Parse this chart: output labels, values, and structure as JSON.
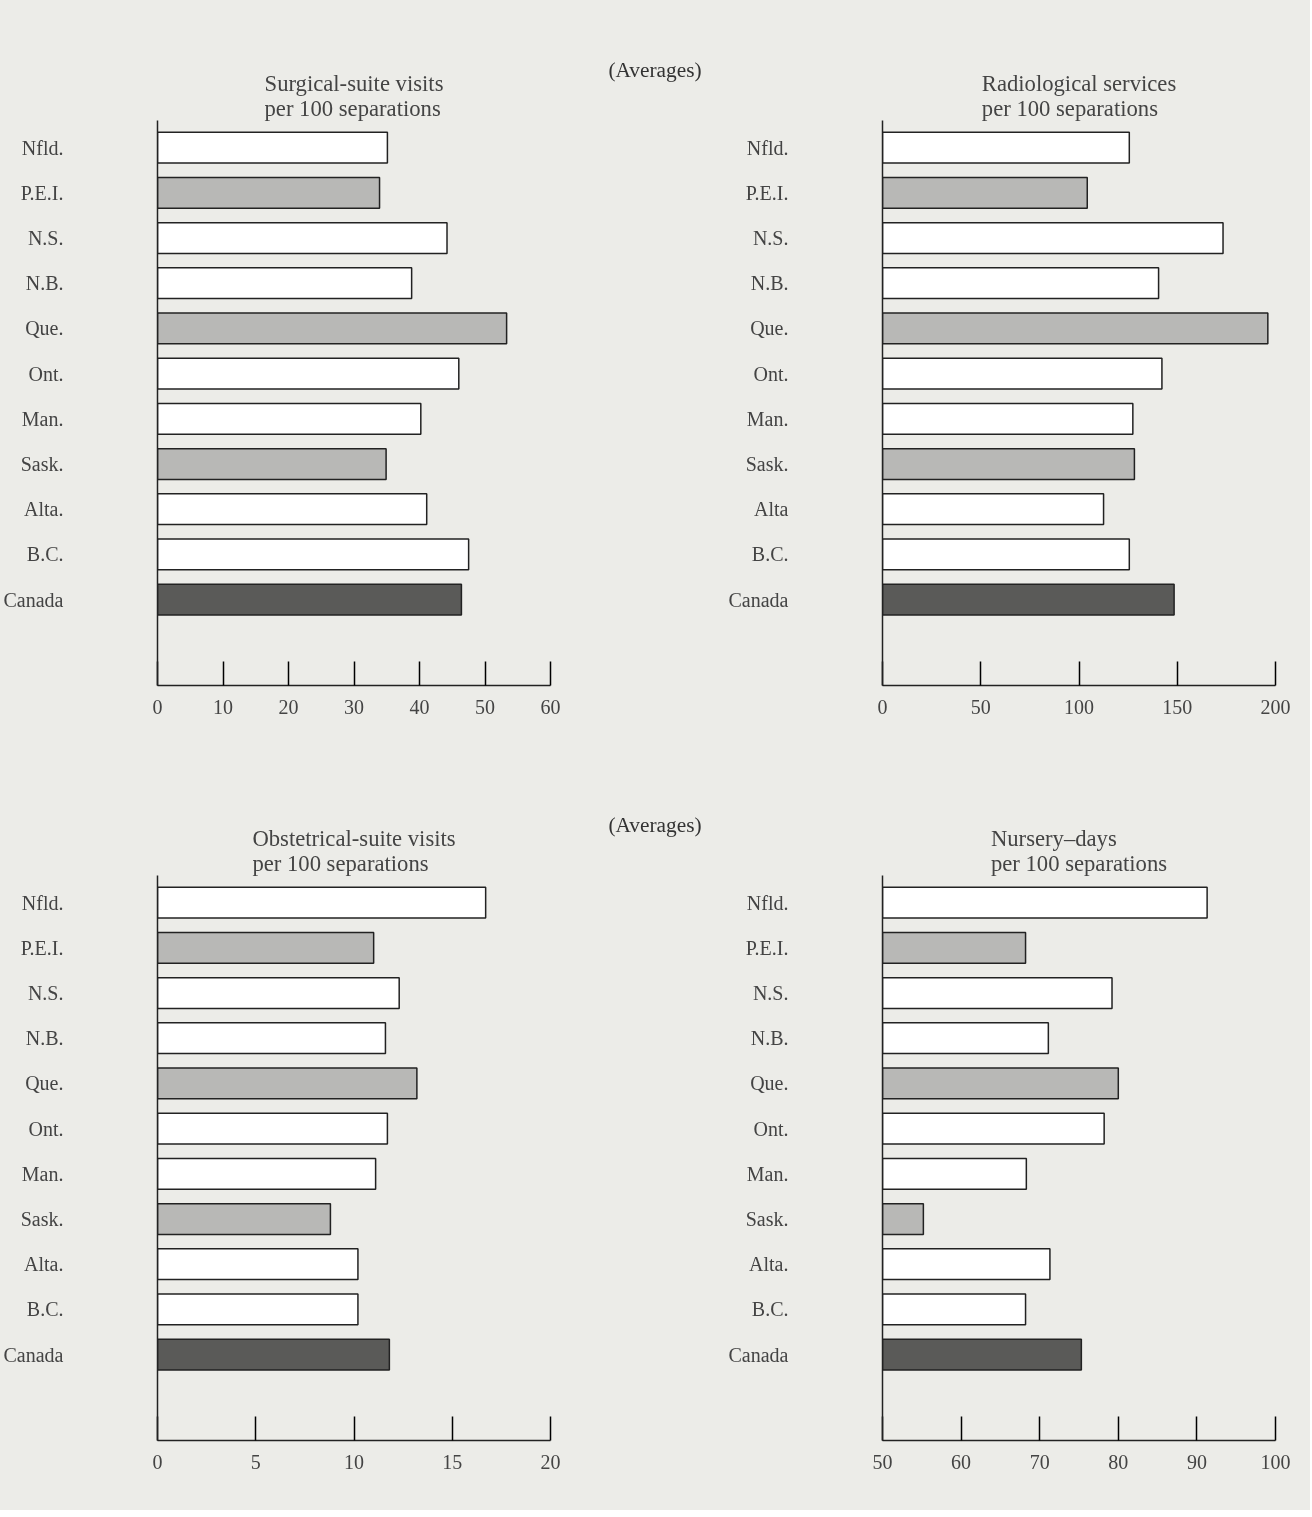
{
  "chart_data": [
    {
      "type": "bar",
      "orientation": "horizontal",
      "title": "Surgical-suite visits\nper 100 separations",
      "annotations": [
        "(Averages)"
      ],
      "categories": [
        "Nfld.",
        "P.E.I.",
        "N.S.",
        "N.B.",
        "Que.",
        "Ont.",
        "Man.",
        "Sask.",
        "Alta.",
        "B.C.",
        "Canada"
      ],
      "values": [
        35.1,
        33.9,
        44.2,
        38.8,
        53.3,
        46.0,
        40.2,
        34.9,
        41.1,
        47.5,
        46.4
      ],
      "colors": [
        "#ffffff",
        "#b8b8b6",
        "#ffffff",
        "#ffffff",
        "#b8b8b6",
        "#ffffff",
        "#ffffff",
        "#b8b8b6",
        "#ffffff",
        "#ffffff",
        "#5a5a58"
      ],
      "xlim": [
        0,
        60
      ],
      "xticks": [
        0,
        10,
        20,
        30,
        40,
        50,
        60
      ]
    },
    {
      "type": "bar",
      "orientation": "horizontal",
      "title": "Radiological services\nper 100 separations",
      "categories": [
        "Nfld.",
        "P.E.I.",
        "N.S.",
        "N.B.",
        "Que.",
        "Ont.",
        "Man.",
        "Sask.",
        "Alta",
        "B.C.",
        "Canada"
      ],
      "values": [
        125.6,
        104.2,
        173.3,
        140.5,
        196.1,
        142.2,
        127.4,
        128.2,
        112.5,
        125.6,
        148.4
      ],
      "colors": [
        "#ffffff",
        "#b8b8b6",
        "#ffffff",
        "#ffffff",
        "#b8b8b6",
        "#ffffff",
        "#ffffff",
        "#b8b8b6",
        "#ffffff",
        "#ffffff",
        "#5a5a58"
      ],
      "xlim": [
        0,
        200
      ],
      "xticks": [
        0,
        50,
        100,
        150,
        200
      ]
    },
    {
      "type": "bar",
      "orientation": "horizontal",
      "title": "Obstetrical-suite visits\nper 100 separations",
      "annotations": [
        "(Averages)"
      ],
      "categories": [
        "Nfld.",
        "P.E.I.",
        "N.S.",
        "N.B.",
        "Que.",
        "Ont.",
        "Man.",
        "Sask.",
        "Alta.",
        "B.C.",
        "Canada"
      ],
      "values": [
        16.7,
        11.0,
        12.3,
        11.6,
        13.2,
        11.7,
        11.1,
        8.8,
        10.2,
        10.2,
        11.8
      ],
      "colors": [
        "#ffffff",
        "#b8b8b6",
        "#ffffff",
        "#ffffff",
        "#b8b8b6",
        "#ffffff",
        "#ffffff",
        "#b8b8b6",
        "#ffffff",
        "#ffffff",
        "#5a5a58"
      ],
      "xlim": [
        0,
        20
      ],
      "xticks": [
        0,
        5,
        10,
        15,
        20
      ]
    },
    {
      "type": "bar",
      "orientation": "horizontal",
      "title": "Nursery–days\nper 100 separations",
      "categories": [
        "Nfld.",
        "P.E.I.",
        "N.S.",
        "N.B.",
        "Que.",
        "Ont.",
        "Man.",
        "Sask.",
        "Alta.",
        "B.C.",
        "Canada"
      ],
      "values": [
        91.3,
        68.2,
        79.2,
        71.1,
        80.0,
        78.2,
        68.3,
        55.2,
        71.3,
        68.2,
        75.3
      ],
      "colors": [
        "#ffffff",
        "#b8b8b6",
        "#ffffff",
        "#ffffff",
        "#b8b8b6",
        "#ffffff",
        "#ffffff",
        "#b8b8b6",
        "#ffffff",
        "#ffffff",
        "#5a5a58"
      ],
      "xlim": [
        50,
        100
      ],
      "xticks": [
        50,
        60,
        70,
        80,
        90,
        100
      ]
    }
  ]
}
